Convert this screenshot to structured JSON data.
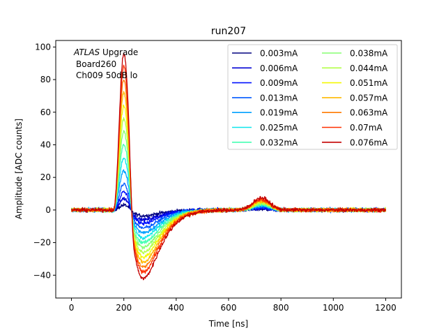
{
  "chart_data": {
    "type": "line",
    "title": "run207",
    "xlabel": "Time [ns]",
    "ylabel": "Amplitude [ADC counts]",
    "xlim": [
      -60,
      1260
    ],
    "ylim": [
      -54,
      104
    ],
    "xticks": [
      "0",
      "200",
      "400",
      "600",
      "800",
      "1000",
      "1200"
    ],
    "yticks": [
      "100",
      "80",
      "60",
      "40",
      "20",
      "0",
      "−20",
      "−40"
    ],
    "grid": false,
    "legend_position": "top-right",
    "legend_columns": 2,
    "annotation": {
      "line1_italic": "ATLAS",
      "line1_rest": " Upgrade",
      "line2": "Board260",
      "line3": "Ch009 50dB lo"
    },
    "x_range_samples": [
      0,
      1200
    ],
    "series": [
      {
        "name": "0.003mA",
        "color": "#00007f",
        "peak": 3,
        "undershoot": -3.5,
        "bump": 0.5
      },
      {
        "name": "0.006mA",
        "color": "#0000d4",
        "peak": 7,
        "undershoot": -6,
        "bump": 1.0
      },
      {
        "name": "0.009mA",
        "color": "#0010ff",
        "peak": 11,
        "undershoot": -8,
        "bump": 1.5
      },
      {
        "name": "0.013mA",
        "color": "#0058ff",
        "peak": 16,
        "undershoot": -11,
        "bump": 2.0
      },
      {
        "name": "0.019mA",
        "color": "#00a0ff",
        "peak": 24,
        "undershoot": -14,
        "bump": 2.5
      },
      {
        "name": "0.025mA",
        "color": "#0ce5ec",
        "peak": 32,
        "undershoot": -17,
        "bump": 3.0
      },
      {
        "name": "0.032mA",
        "color": "#45ffb2",
        "peak": 40,
        "undershoot": -20,
        "bump": 3.5
      },
      {
        "name": "0.038mA",
        "color": "#86ff71",
        "peak": 48,
        "undershoot": -23,
        "bump": 4.0
      },
      {
        "name": "0.044mA",
        "color": "#b2ff45",
        "peak": 56,
        "undershoot": -26,
        "bump": 4.5
      },
      {
        "name": "0.051mA",
        "color": "#f4f802",
        "peak": 64,
        "undershoot": -29,
        "bump": 5.0
      },
      {
        "name": "0.057mA",
        "color": "#ffb900",
        "peak": 72,
        "undershoot": -32,
        "bump": 5.5
      },
      {
        "name": "0.063mA",
        "color": "#ff7a00",
        "peak": 80,
        "undershoot": -35,
        "bump": 6.0
      },
      {
        "name": "0.07mA",
        "color": "#ff3000",
        "peak": 88,
        "undershoot": -38,
        "bump": 6.5
      },
      {
        "name": "0.076mA",
        "color": "#c40000",
        "peak": 96,
        "undershoot": -42,
        "bump": 7.5
      }
    ]
  }
}
